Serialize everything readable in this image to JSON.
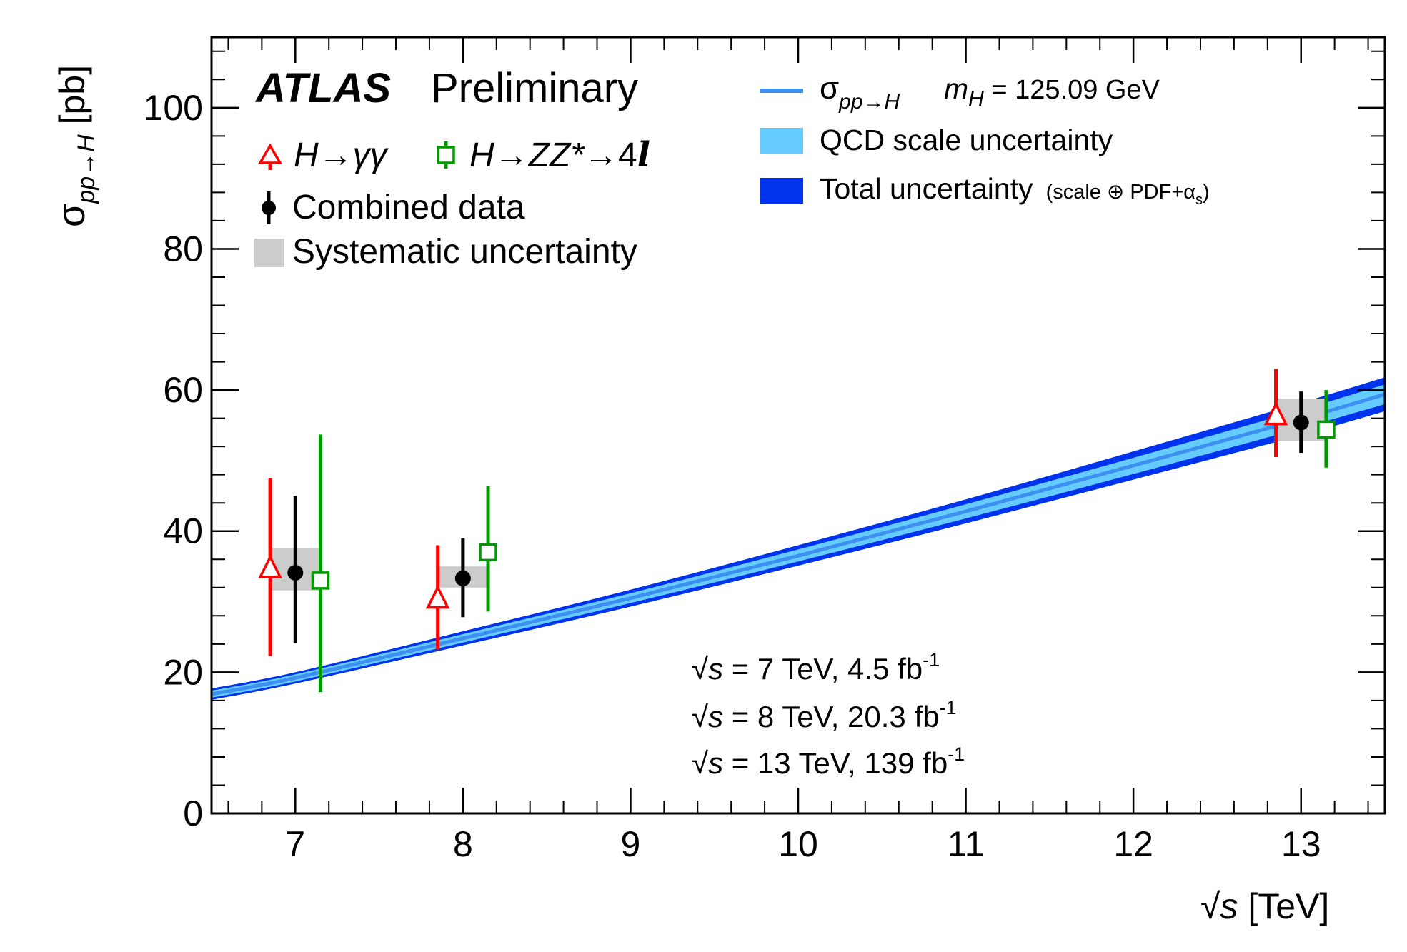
{
  "chart_data": {
    "type": "scatter",
    "title": "ATLAS Preliminary",
    "experiment": "ATLAS",
    "status": "Preliminary",
    "xlabel": "√s [TeV]",
    "ylabel": "σ_{pp→H} [pb]",
    "xlim": [
      6.5,
      13.5
    ],
    "ylim": [
      0,
      110
    ],
    "x_ticks": [
      7,
      8,
      9,
      10,
      11,
      12,
      13
    ],
    "y_ticks": [
      0,
      20,
      40,
      60,
      80,
      100
    ],
    "legend_left": [
      "H→γγ",
      "H→ZZ*→4l",
      "Combined data",
      "Systematic uncertainty"
    ],
    "legend_right": [
      "σ_{pp→H}   m_H = 125.09 GeV",
      "QCD scale uncertainty",
      "Total uncertainty (scale ⊕ PDF+α_s)"
    ],
    "legend_text": {
      "H": "H",
      "arrow": "→",
      "gg": "γγ",
      "ZZ": "ZZ*",
      "four": "4",
      "l": "l",
      "combined": "Combined data",
      "syst": "Systematic uncertainty",
      "sigma": "σ",
      "sigma_sub": "pp→H",
      "mH": "m",
      "mH_sub": "H",
      "mH_value": " = 125.09 GeV",
      "qcd": "QCD scale uncertainty",
      "total": "Total uncertainty",
      "total_extra": "(scale ⊕ PDF+α",
      "total_sub": "s",
      "total_close": ")"
    },
    "axis_text": {
      "y_sigma": "σ",
      "y_sub": "pp→H",
      "y_unit": " [pb]",
      "x_root": "√",
      "x_s": "s",
      "x_unit": " [TeV]"
    },
    "series": [
      {
        "name": "H→γγ",
        "marker": "open-triangle",
        "color": "#ff0000",
        "points": [
          {
            "x": 7,
            "y": 34.6,
            "ylo": 22.3,
            "yhi": 47.5
          },
          {
            "x": 8,
            "y": 30.3,
            "ylo": 23.2,
            "yhi": 38.0
          },
          {
            "x": 13,
            "y": 56.3,
            "ylo": 50.5,
            "yhi": 63.0
          }
        ]
      },
      {
        "name": "H→ZZ*→4l",
        "marker": "open-square",
        "color": "#009900",
        "points": [
          {
            "x": 7,
            "y": 33.0,
            "ylo": 17.2,
            "yhi": 53.7
          },
          {
            "x": 8,
            "y": 37.0,
            "ylo": 28.6,
            "yhi": 46.4
          },
          {
            "x": 13,
            "y": 54.4,
            "ylo": 49.0,
            "yhi": 60.0
          }
        ]
      },
      {
        "name": "Combined data",
        "marker": "filled-circle",
        "color": "#000000",
        "points": [
          {
            "x": 7,
            "y": 34.1,
            "ylo": 24.1,
            "yhi": 45.0,
            "syst_lo": 31.6,
            "syst_hi": 37.6
          },
          {
            "x": 8,
            "y": 33.3,
            "ylo": 27.8,
            "yhi": 39.0,
            "syst_lo": 32.0,
            "syst_hi": 35.0
          },
          {
            "x": 13,
            "y": 55.4,
            "ylo": 51.1,
            "yhi": 59.8,
            "syst_lo": 52.8,
            "syst_hi": 58.8
          }
        ]
      }
    ],
    "theory": {
      "name": "σ_{pp→H}",
      "mH": "125.09 GeV",
      "x": [
        6.5,
        7,
        8,
        9,
        10,
        11,
        12,
        13,
        13.5
      ],
      "central": [
        16.9,
        19.2,
        24.8,
        30.5,
        36.5,
        42.8,
        49.3,
        55.9,
        59.4
      ],
      "qcd_lo": [
        16.4,
        18.7,
        24.2,
        29.8,
        35.7,
        41.8,
        48.1,
        54.6,
        58.0
      ],
      "qcd_hi": [
        17.4,
        19.7,
        25.4,
        31.2,
        37.4,
        43.8,
        50.4,
        57.2,
        60.8
      ],
      "total_lo": [
        16.1,
        18.4,
        23.8,
        29.3,
        35.1,
        41.1,
        47.3,
        53.6,
        57.0
      ],
      "total_hi": [
        17.7,
        20.0,
        25.8,
        31.7,
        38.0,
        44.5,
        51.3,
        58.2,
        61.8
      ]
    },
    "colors": {
      "central": "#3d8ff0",
      "qcd": "#66ccff",
      "total": "#0033ee",
      "syst": "#cccccc"
    },
    "annotations": [
      {
        "sqrt": "√",
        "s": "s",
        "text": " = 7 TeV,  4.5 fb",
        "sup": "-1"
      },
      {
        "sqrt": "√",
        "s": "s",
        "text": " = 8 TeV,  20.3 fb",
        "sup": "-1"
      },
      {
        "sqrt": "√",
        "s": "s",
        "text": " = 13 TeV, 139 fb",
        "sup": "-1"
      }
    ]
  }
}
